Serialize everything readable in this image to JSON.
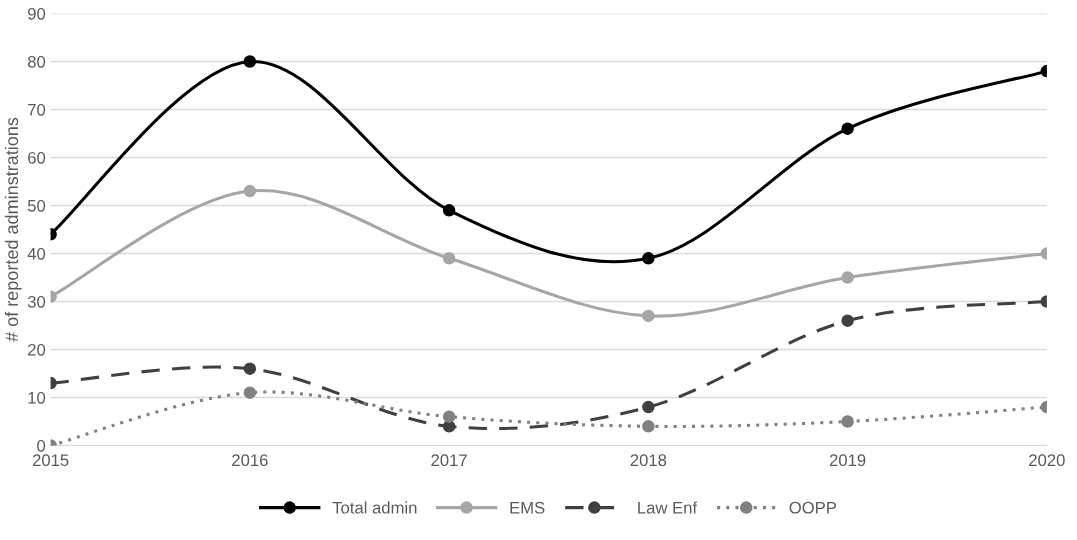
{
  "chart_data": {
    "type": "line",
    "ylabel": "# of reported adminstrations",
    "categories": [
      "2015",
      "2016",
      "2017",
      "2018",
      "2019",
      "2020"
    ],
    "series": [
      {
        "name": "Total admin",
        "color": "#000000",
        "values": [
          44,
          80,
          49,
          39,
          66,
          78
        ],
        "line_style": "solid"
      },
      {
        "name": "EMS",
        "color": "#a6a6a6",
        "values": [
          31,
          53,
          39,
          27,
          35,
          40
        ],
        "line_style": "solid"
      },
      {
        "name": "Law Enf",
        "color": "#404040",
        "values": [
          13,
          16,
          4,
          8,
          26,
          30
        ],
        "line_style": "dashed"
      },
      {
        "name": "OOPP",
        "color": "#808080",
        "values": [
          0,
          11,
          6,
          4,
          5,
          8
        ],
        "line_style": "dotted"
      }
    ],
    "ylim": [
      0,
      90
    ],
    "yticks": [
      0,
      10,
      20,
      30,
      40,
      50,
      60,
      70,
      80,
      90
    ],
    "grid": "y",
    "legend": "bottom",
    "marker": "circle"
  }
}
